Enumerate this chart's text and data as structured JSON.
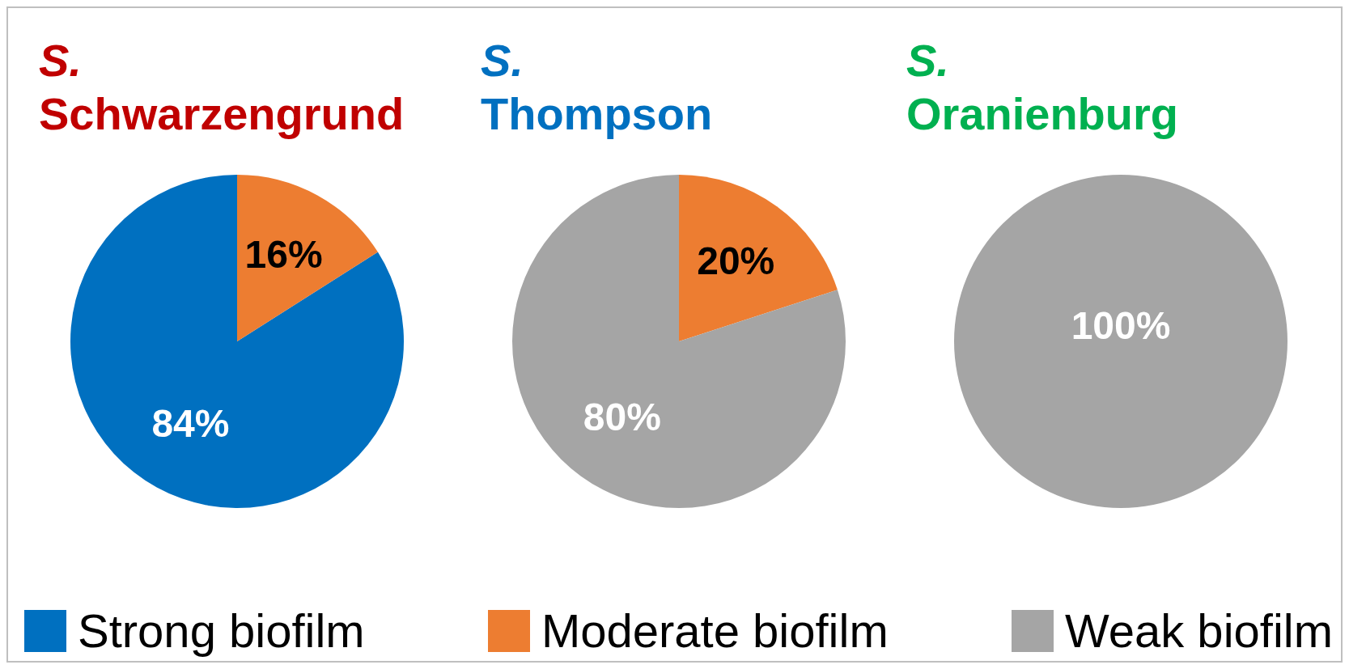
{
  "chart_data": [
    {
      "type": "pie",
      "title": "S. Schwarzengrund",
      "categories": [
        "Strong biofilm",
        "Moderate biofilm",
        "Weak biofilm"
      ],
      "values": [
        84,
        16,
        0
      ],
      "colors": [
        "#0070c0",
        "#ed7d31",
        "#a5a5a5"
      ],
      "value_labels": [
        "84%",
        "16%",
        null
      ],
      "legend": "bottom"
    },
    {
      "type": "pie",
      "title": "S. Thompson",
      "categories": [
        null,
        null,
        null
      ],
      "values": [
        0,
        20,
        80
      ],
      "colors": [
        "#0070c0",
        "#ed7d31",
        "#a5a5a5"
      ],
      "value_labels": [
        null,
        "20%",
        "80%"
      ]
    },
    {
      "type": "pie",
      "title": "S. Oranienburg",
      "categories": [
        null,
        null,
        null
      ],
      "values": [
        0,
        0,
        100
      ],
      "colors": [
        "#0070c0",
        "#ed7d31",
        "#a5a5a5"
      ],
      "value_labels": [
        null,
        null,
        "100%"
      ]
    }
  ]
}
